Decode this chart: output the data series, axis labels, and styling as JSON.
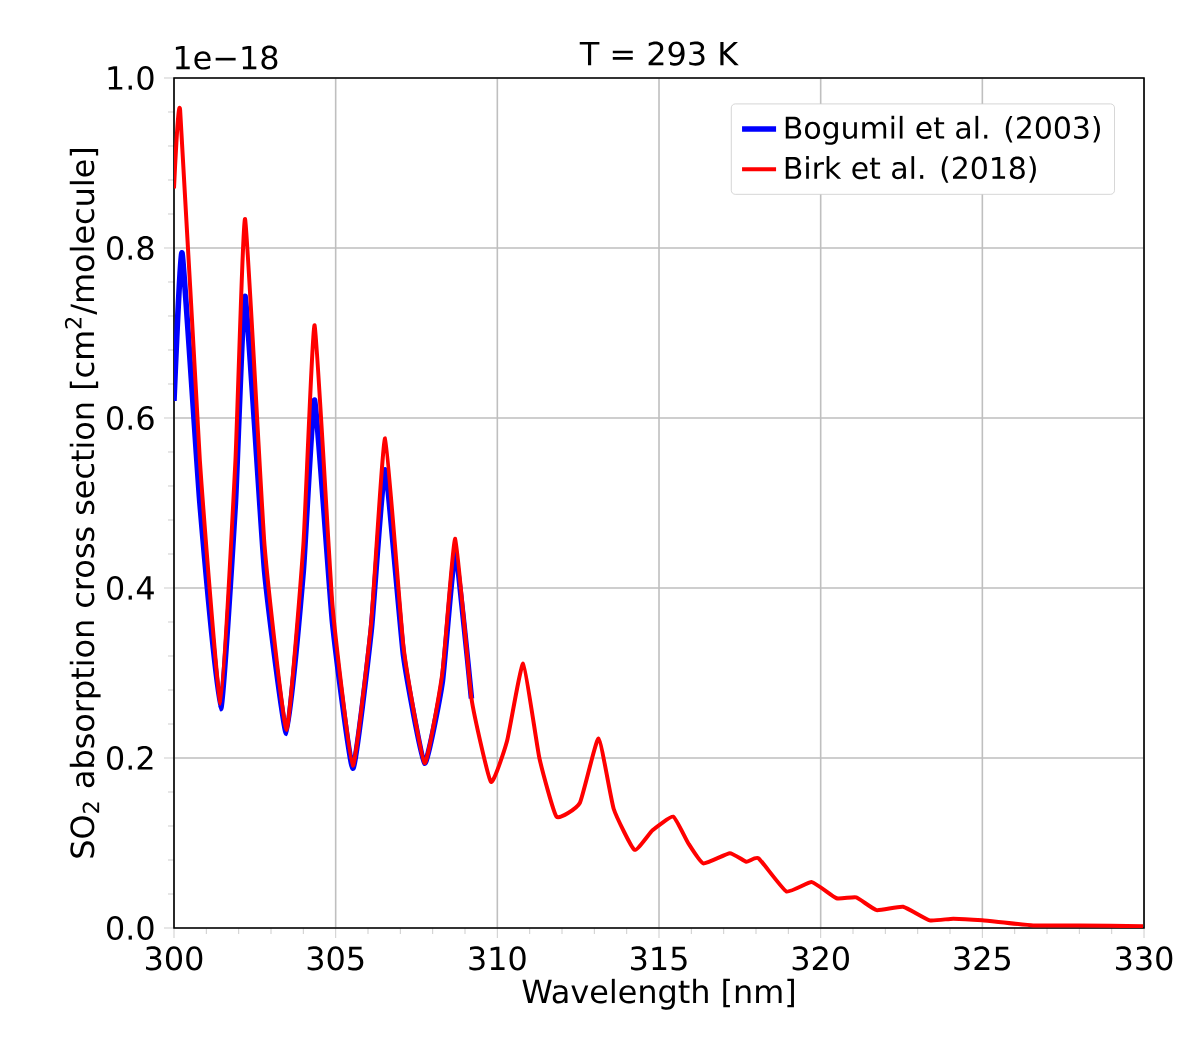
{
  "chart_data": {
    "type": "line",
    "title": "T = 293 K",
    "xlabel": "Wavelength [nm]",
    "ylabel": "SO$_{2}$ absorption cross section [cm$^{2}$/molecule]",
    "annotations": [
      "1e−18"
    ],
    "series": [
      {
        "name": "Bogumil et al. (2003)",
        "color": "#0000ff",
        "x": [
          300.0,
          300.25,
          300.8,
          301.44,
          301.9,
          302.2,
          302.8,
          303.48,
          304.0,
          304.35,
          304.9,
          305.53,
          306.1,
          306.53,
          307.1,
          307.75,
          308.3,
          308.7,
          309.2
        ],
        "values": [
          0.62,
          0.794,
          0.5,
          0.258,
          0.5,
          0.743,
          0.42,
          0.229,
          0.42,
          0.621,
          0.36,
          0.188,
          0.35,
          0.539,
          0.32,
          0.194,
          0.29,
          0.441,
          0.27
        ]
      },
      {
        "name": "Birk et al. (2018)",
        "color": "#ff0000",
        "x": [
          300.0,
          300.19,
          300.8,
          301.44,
          301.9,
          302.2,
          302.8,
          303.48,
          304.0,
          304.35,
          304.9,
          305.53,
          306.1,
          306.53,
          307.1,
          307.75,
          308.3,
          308.7,
          309.2,
          309.8,
          310.3,
          310.8,
          311.3,
          311.83,
          312.55,
          313.13,
          313.6,
          314.24,
          314.8,
          315.44,
          315.9,
          316.37,
          317.19,
          317.7,
          318.08,
          318.94,
          319.73,
          320.49,
          321.1,
          321.73,
          322.55,
          323.37,
          324.1,
          325.0,
          326.57,
          328.0,
          329.97
        ],
        "values": [
          0.87,
          0.962,
          0.55,
          0.264,
          0.55,
          0.834,
          0.45,
          0.233,
          0.45,
          0.709,
          0.38,
          0.191,
          0.36,
          0.576,
          0.33,
          0.194,
          0.3,
          0.458,
          0.27,
          0.172,
          0.22,
          0.311,
          0.2,
          0.131,
          0.147,
          0.223,
          0.14,
          0.092,
          0.115,
          0.131,
          0.1,
          0.076,
          0.088,
          0.078,
          0.082,
          0.043,
          0.054,
          0.035,
          0.036,
          0.021,
          0.025,
          0.009,
          0.011,
          0.009,
          0.003,
          0.003,
          0.002
        ]
      }
    ],
    "xlim": [
      300,
      330
    ],
    "xticks": [
      300,
      305,
      310,
      315,
      320,
      325,
      330
    ],
    "ylim": [
      0,
      1.0
    ],
    "yticks": [
      {
        "value": 0,
        "label": "0.0"
      },
      0.2,
      0.4,
      0.6,
      0.8,
      {
        "value": 1,
        "label": "1.0"
      }
    ],
    "grid": true,
    "legend": "top right",
    "marker": "none",
    "line_style": "solid"
  }
}
